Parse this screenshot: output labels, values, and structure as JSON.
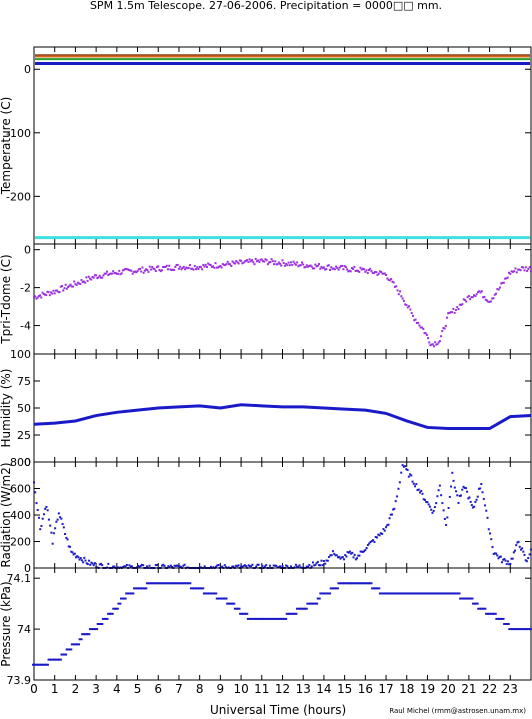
{
  "title": "SPM 1.5m Telescope. 27-06-2006. Precipitation = 0000□□ mm.",
  "xlabel": "Universal Time (hours)",
  "credit": "Raul Michel (rmm@astrosen.unam.mx)",
  "colors": {
    "frame": "#000000",
    "blue": "#1a1ac8",
    "purple": "#9b30e0",
    "cyan": "#40e0e0",
    "green": "#2aa02a",
    "brown": "#8b3a1a",
    "orange": "#d2691e"
  },
  "chart_data": [
    {
      "name": "temperature",
      "type": "line",
      "ylabel": "Temperature (C)",
      "ylim": [
        -275,
        35
      ],
      "xlim": [
        0,
        24
      ],
      "yticks": [
        0,
        -100,
        -200
      ],
      "series": [
        {
          "color": "#8b3a1a",
          "values_const": 22
        },
        {
          "color": "#d2691e",
          "values_const": 20
        },
        {
          "color": "#2aa02a",
          "values_const": 16
        },
        {
          "color": "#1a1ac8",
          "values_const": 9
        },
        {
          "color": "#40e0e0",
          "values_const": -265
        }
      ]
    },
    {
      "name": "tpri-tdome",
      "type": "scatter",
      "ylabel": "Tpri-Tdome (C)",
      "ylim": [
        -5.5,
        0.3
      ],
      "yticks": [
        0,
        -2,
        -4
      ],
      "x": [
        0,
        1,
        2,
        3,
        4,
        5,
        6,
        7,
        8,
        9,
        10,
        11,
        12,
        13,
        14,
        15,
        16,
        17,
        17.8,
        18.3,
        18.8,
        19.2,
        19.6,
        20,
        20.5,
        21,
        21.5,
        22,
        22.5,
        23,
        23.5,
        24
      ],
      "y": [
        -2.5,
        -2.2,
        -1.8,
        -1.4,
        -1.2,
        -1.1,
        -1.0,
        -0.9,
        -0.9,
        -0.8,
        -0.7,
        -0.6,
        -0.7,
        -0.8,
        -0.9,
        -1.0,
        -1.1,
        -1.3,
        -2.5,
        -3.5,
        -4.2,
        -5.0,
        -4.8,
        -3.5,
        -3.0,
        -2.5,
        -2.2,
        -2.7,
        -2.0,
        -1.2,
        -1.0,
        -1.0
      ]
    },
    {
      "name": "humidity",
      "type": "line",
      "ylabel": "Humidity (%)",
      "ylim": [
        0,
        100
      ],
      "yticks": [
        0,
        25,
        50,
        75,
        100
      ],
      "x": [
        0,
        1,
        2,
        3,
        4,
        5,
        6,
        7,
        8,
        9,
        10,
        11,
        12,
        13,
        14,
        15,
        16,
        17,
        18,
        19,
        20,
        21,
        22,
        23,
        24
      ],
      "y": [
        35,
        36,
        38,
        43,
        46,
        48,
        50,
        51,
        52,
        50,
        53,
        52,
        51,
        51,
        50,
        49,
        48,
        45,
        38,
        32,
        31,
        31,
        31,
        42,
        43
      ]
    },
    {
      "name": "radiation",
      "type": "scatter",
      "ylabel": "Radiation (W/m2)",
      "ylim": [
        0,
        800
      ],
      "yticks": [
        0,
        200,
        400,
        600,
        800
      ],
      "x": [
        0,
        0.3,
        0.6,
        0.9,
        1.2,
        1.5,
        1.8,
        2.2,
        2.6,
        3,
        4,
        6,
        8,
        10,
        12,
        13,
        14,
        14.5,
        14.8,
        15.2,
        15.6,
        16,
        16.5,
        17,
        17.4,
        17.6,
        17.8,
        19.3,
        19.6,
        19.9,
        20.2,
        20.5,
        20.8,
        21.2,
        21.6,
        21.9,
        22.2,
        22.6,
        23,
        23.4,
        23.8,
        24
      ],
      "y": [
        650,
        300,
        480,
        200,
        420,
        260,
        120,
        80,
        40,
        20,
        5,
        5,
        5,
        5,
        5,
        10,
        40,
        120,
        60,
        110,
        80,
        150,
        220,
        300,
        450,
        600,
        780,
        420,
        620,
        320,
        700,
        500,
        620,
        440,
        640,
        360,
        120,
        60,
        40,
        200,
        40,
        150
      ]
    },
    {
      "name": "pressure",
      "type": "scatter",
      "ylabel": "Pressure (kPa)",
      "ylim": [
        73.9,
        74.12
      ],
      "yticks": [
        73.9,
        74,
        74.1
      ],
      "x": [
        0,
        0.5,
        1,
        1.5,
        2,
        2.5,
        3,
        3.5,
        4,
        4.5,
        5,
        6,
        7,
        8,
        8.5,
        9,
        9.5,
        10,
        10.5,
        11,
        11.5,
        12,
        12.5,
        13,
        13.5,
        14,
        14.5,
        15,
        15.5,
        16,
        16.5,
        17,
        18,
        19,
        20,
        21,
        21.5,
        22,
        22.5,
        23,
        23.5,
        24
      ],
      "y": [
        73.93,
        73.93,
        73.94,
        73.95,
        73.97,
        73.99,
        74.0,
        74.02,
        74.04,
        74.07,
        74.08,
        74.09,
        74.09,
        74.08,
        74.07,
        74.06,
        74.05,
        74.03,
        74.02,
        74.02,
        74.02,
        74.02,
        74.03,
        74.04,
        74.05,
        74.07,
        74.08,
        74.09,
        74.09,
        74.09,
        74.08,
        74.07,
        74.07,
        74.07,
        74.07,
        74.06,
        74.04,
        74.03,
        74.02,
        74.0,
        74.0,
        74.0
      ]
    }
  ],
  "xticks": [
    "0",
    "1",
    "2",
    "3",
    "4",
    "5",
    "6",
    "7",
    "8",
    "9",
    "10",
    "11",
    "12",
    "13",
    "14",
    "15",
    "16",
    "17",
    "18",
    "19",
    "20",
    "21",
    "22",
    "23"
  ]
}
